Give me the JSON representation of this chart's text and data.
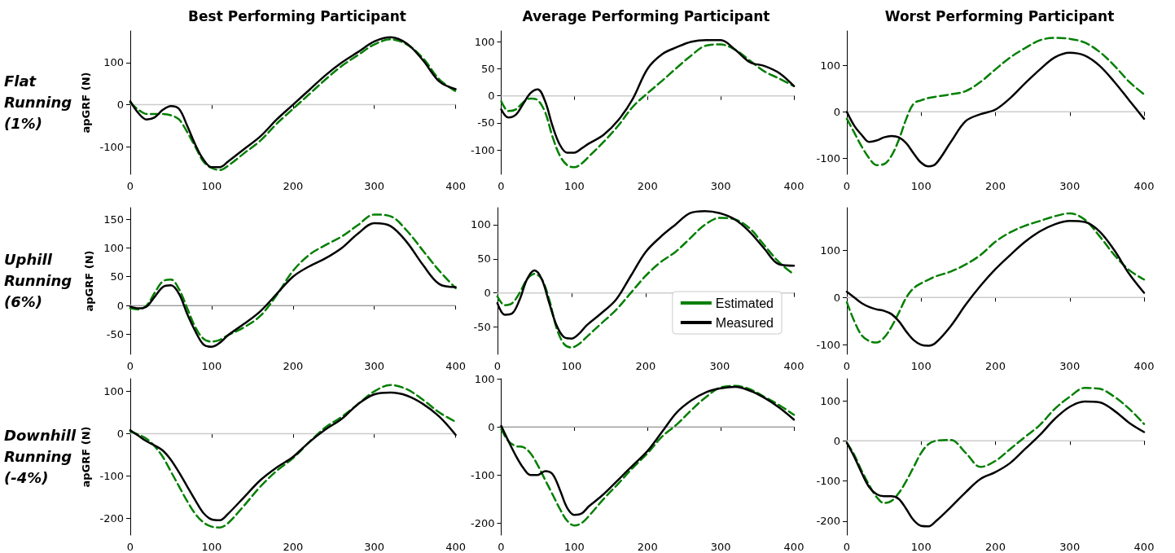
{
  "chart_data": [
    {
      "type": "line",
      "title": "Best Performing Participant",
      "ylabel": "apGRF (N)",
      "annotations": [
        "Flat Running (1%)"
      ],
      "x": [
        0,
        10,
        20,
        30,
        40,
        50,
        60,
        70,
        80,
        90,
        100,
        110,
        120,
        140,
        160,
        180,
        200,
        220,
        240,
        260,
        280,
        300,
        320,
        340,
        360,
        380,
        400
      ],
      "xlim": [
        0,
        400
      ],
      "xticks": [
        0,
        100,
        200,
        300,
        400
      ],
      "ylim": [
        -165,
        175
      ],
      "yticks": [
        -100,
        0,
        100
      ],
      "ref_lines": [
        {
          "axis": "y",
          "value": 0,
          "color": "#cccccc"
        }
      ],
      "series": [
        {
          "color": "#007f00",
          "line_style": "dashed",
          "values": [
            5,
            -12,
            -22,
            -22,
            -22,
            -25,
            -35,
            -65,
            -100,
            -135,
            -150,
            -155,
            -145,
            -115,
            -85,
            -45,
            -10,
            25,
            60,
            92,
            118,
            143,
            155,
            143,
            110,
            60,
            32
          ]
        },
        {
          "color": "#000000",
          "line_style": "solid",
          "values": [
            8,
            -20,
            -35,
            -30,
            -12,
            -3,
            -10,
            -50,
            -95,
            -130,
            -148,
            -148,
            -135,
            -105,
            -75,
            -35,
            0,
            35,
            70,
            100,
            125,
            150,
            160,
            145,
            105,
            55,
            37
          ]
        }
      ]
    },
    {
      "type": "line",
      "title": "Average Performing Participant",
      "x": [
        0,
        10,
        20,
        30,
        40,
        50,
        60,
        70,
        80,
        90,
        100,
        110,
        120,
        140,
        160,
        180,
        200,
        220,
        240,
        260,
        280,
        300,
        320,
        340,
        360,
        380,
        400
      ],
      "xlim": [
        0,
        400
      ],
      "xticks": [
        0,
        100,
        200,
        300,
        400
      ],
      "ylim": [
        -145,
        120
      ],
      "yticks": [
        -100,
        -50,
        0,
        50,
        100
      ],
      "ref_lines": [
        {
          "axis": "y",
          "value": 0,
          "color": "#cccccc"
        }
      ],
      "series": [
        {
          "color": "#007f00",
          "line_style": "dashed",
          "values": [
            -10,
            -28,
            -25,
            -12,
            -5,
            -8,
            -30,
            -75,
            -110,
            -128,
            -132,
            -125,
            -112,
            -85,
            -55,
            -20,
            5,
            28,
            52,
            75,
            93,
            95,
            85,
            65,
            45,
            32,
            18
          ]
        },
        {
          "color": "#000000",
          "line_style": "solid",
          "values": [
            -25,
            -40,
            -35,
            -15,
            5,
            12,
            -10,
            -55,
            -90,
            -105,
            -105,
            -97,
            -88,
            -72,
            -45,
            -5,
            50,
            77,
            90,
            100,
            103,
            103,
            85,
            62,
            55,
            42,
            18
          ]
        }
      ]
    },
    {
      "type": "line",
      "title": "Worst Performing Participant",
      "x": [
        0,
        10,
        20,
        30,
        40,
        50,
        60,
        70,
        80,
        90,
        100,
        110,
        120,
        140,
        160,
        180,
        200,
        220,
        240,
        260,
        280,
        300,
        320,
        340,
        360,
        380,
        400
      ],
      "xlim": [
        0,
        400
      ],
      "xticks": [
        0,
        100,
        200,
        300,
        400
      ],
      "ylim": [
        -135,
        175
      ],
      "yticks": [
        -100,
        0,
        100
      ],
      "ref_lines": [
        {
          "axis": "y",
          "value": 0,
          "color": "#cccccc"
        }
      ],
      "series": [
        {
          "color": "#007f00",
          "line_style": "dashed",
          "values": [
            -15,
            -45,
            -75,
            -100,
            -115,
            -113,
            -95,
            -60,
            -15,
            18,
            25,
            30,
            33,
            38,
            45,
            65,
            92,
            118,
            138,
            155,
            160,
            158,
            150,
            130,
            100,
            65,
            38
          ]
        },
        {
          "color": "#000000",
          "line_style": "solid",
          "values": [
            0,
            -30,
            -50,
            -65,
            -62,
            -55,
            -52,
            -55,
            -68,
            -90,
            -110,
            -118,
            -112,
            -65,
            -20,
            -5,
            5,
            30,
            62,
            92,
            118,
            128,
            122,
            100,
            65,
            25,
            -15
          ]
        }
      ]
    },
    {
      "type": "line",
      "ylabel": "apGRF (N)",
      "annotations": [
        "Uphill Running (6%)"
      ],
      "x": [
        0,
        10,
        20,
        30,
        40,
        50,
        60,
        70,
        80,
        90,
        100,
        110,
        120,
        140,
        160,
        180,
        200,
        220,
        240,
        260,
        280,
        300,
        320,
        340,
        360,
        380,
        400
      ],
      "xlim": [
        0,
        400
      ],
      "xticks": [
        0,
        100,
        200,
        300,
        400
      ],
      "ylim": [
        -85,
        170
      ],
      "yticks": [
        -50,
        0,
        50,
        100,
        150
      ],
      "ref_lines": [
        {
          "axis": "y",
          "value": 0,
          "color": "#cccccc"
        }
      ],
      "series": [
        {
          "color": "#007f00",
          "line_style": "dashed",
          "values": [
            -5,
            -7,
            0,
            22,
            42,
            45,
            28,
            -5,
            -38,
            -58,
            -63,
            -60,
            -52,
            -38,
            -18,
            18,
            60,
            88,
            105,
            120,
            140,
            158,
            155,
            130,
            95,
            60,
            30
          ]
        },
        {
          "color": "#000000",
          "line_style": "solid",
          "values": [
            -2,
            -5,
            -2,
            15,
            32,
            35,
            20,
            -15,
            -45,
            -68,
            -72,
            -65,
            -52,
            -32,
            -10,
            20,
            50,
            68,
            82,
            100,
            125,
            143,
            138,
            110,
            70,
            37,
            32
          ]
        }
      ]
    },
    {
      "type": "line",
      "legend": "bottom right",
      "x": [
        0,
        10,
        20,
        30,
        40,
        50,
        60,
        70,
        80,
        90,
        100,
        110,
        120,
        140,
        160,
        180,
        200,
        220,
        240,
        260,
        280,
        300,
        320,
        340,
        360,
        380,
        400
      ],
      "xlim": [
        0,
        400
      ],
      "xticks": [
        0,
        100,
        200,
        300,
        400
      ],
      "ylim": [
        -90,
        125
      ],
      "yticks": [
        -50,
        0,
        50,
        100
      ],
      "ref_lines": [
        {
          "axis": "y",
          "value": 0,
          "color": "#cccccc"
        }
      ],
      "series": [
        {
          "name": "Estimated",
          "color": "#007f00",
          "line_style": "dashed",
          "values": [
            -5,
            -18,
            -15,
            0,
            20,
            28,
            20,
            -10,
            -52,
            -75,
            -80,
            -75,
            -65,
            -45,
            -25,
            0,
            25,
            45,
            60,
            80,
            100,
            110,
            108,
            95,
            70,
            45,
            27
          ]
        },
        {
          "name": "Measured",
          "color": "#000000",
          "line_style": "solid",
          "values": [
            -15,
            -32,
            -30,
            -10,
            20,
            33,
            20,
            -15,
            -48,
            -65,
            -67,
            -60,
            -48,
            -30,
            -10,
            25,
            60,
            82,
            100,
            117,
            120,
            117,
            108,
            90,
            65,
            42,
            40
          ]
        }
      ]
    },
    {
      "type": "line",
      "x": [
        0,
        10,
        20,
        30,
        40,
        50,
        60,
        70,
        80,
        90,
        100,
        110,
        120,
        140,
        160,
        180,
        200,
        220,
        240,
        260,
        280,
        300,
        320,
        340,
        360,
        380,
        400
      ],
      "xlim": [
        0,
        400
      ],
      "xticks": [
        0,
        100,
        200,
        300,
        400
      ],
      "ylim": [
        -120,
        190
      ],
      "yticks": [
        -100,
        0,
        100
      ],
      "ref_lines": [
        {
          "axis": "y",
          "value": 0,
          "color": "#cccccc"
        }
      ],
      "series": [
        {
          "color": "#007f00",
          "line_style": "dashed",
          "values": [
            -10,
            -50,
            -80,
            -92,
            -95,
            -85,
            -62,
            -32,
            0,
            20,
            30,
            38,
            45,
            55,
            70,
            90,
            118,
            138,
            152,
            162,
            172,
            178,
            165,
            130,
            90,
            58,
            38
          ]
        },
        {
          "color": "#000000",
          "line_style": "solid",
          "values": [
            12,
            0,
            -12,
            -20,
            -25,
            -28,
            -35,
            -50,
            -72,
            -90,
            -100,
            -102,
            -95,
            -60,
            -15,
            25,
            60,
            90,
            118,
            140,
            155,
            162,
            160,
            140,
            100,
            50,
            10
          ]
        }
      ]
    },
    {
      "type": "line",
      "ylabel": "apGRF (N)",
      "annotations": [
        "Downhill Running (-4%)"
      ],
      "x": [
        0,
        10,
        20,
        30,
        40,
        50,
        60,
        70,
        80,
        90,
        100,
        110,
        120,
        140,
        160,
        180,
        200,
        220,
        240,
        260,
        280,
        300,
        320,
        340,
        360,
        380,
        400
      ],
      "xlim": [
        0,
        400
      ],
      "xticks": [
        0,
        100,
        200,
        300,
        400
      ],
      "ylim": [
        -240,
        130
      ],
      "yticks": [
        -200,
        -100,
        0,
        100
      ],
      "ref_lines": [
        {
          "axis": "y",
          "value": 0,
          "color": "#cccccc"
        }
      ],
      "series": [
        {
          "color": "#007f00",
          "line_style": "dashed",
          "values": [
            5,
            -2,
            -12,
            -30,
            -55,
            -90,
            -125,
            -160,
            -190,
            -210,
            -220,
            -222,
            -212,
            -170,
            -125,
            -88,
            -58,
            -20,
            15,
            40,
            70,
            100,
            115,
            105,
            80,
            50,
            28
          ]
        },
        {
          "color": "#000000",
          "line_style": "solid",
          "values": [
            8,
            -5,
            -18,
            -28,
            -40,
            -62,
            -92,
            -125,
            -158,
            -188,
            -203,
            -205,
            -190,
            -150,
            -110,
            -80,
            -55,
            -20,
            10,
            35,
            70,
            93,
            97,
            90,
            70,
            40,
            -3
          ]
        }
      ]
    },
    {
      "type": "line",
      "x": [
        0,
        10,
        20,
        30,
        40,
        50,
        60,
        70,
        80,
        90,
        100,
        110,
        120,
        140,
        160,
        180,
        200,
        220,
        240,
        260,
        280,
        300,
        320,
        340,
        360,
        380,
        400
      ],
      "xlim": [
        0,
        400
      ],
      "xticks": [
        0,
        100,
        200,
        300,
        400
      ],
      "ylim": [
        -225,
        100
      ],
      "yticks": [
        -200,
        -100,
        0,
        100
      ],
      "ref_lines": [
        {
          "axis": "y",
          "value": 0,
          "color": "#cccccc"
        }
      ],
      "series": [
        {
          "color": "#007f00",
          "line_style": "dashed",
          "values": [
            -5,
            -30,
            -40,
            -42,
            -55,
            -80,
            -110,
            -140,
            -170,
            -195,
            -205,
            -200,
            -185,
            -150,
            -118,
            -85,
            -55,
            -20,
            5,
            35,
            62,
            82,
            85,
            78,
            62,
            45,
            25
          ]
        },
        {
          "color": "#000000",
          "line_style": "solid",
          "values": [
            2,
            -30,
            -60,
            -85,
            -100,
            -100,
            -92,
            -98,
            -130,
            -168,
            -183,
            -180,
            -165,
            -140,
            -110,
            -80,
            -50,
            -10,
            30,
            55,
            72,
            80,
            83,
            75,
            60,
            40,
            15
          ]
        }
      ]
    },
    {
      "type": "line",
      "x": [
        0,
        10,
        20,
        30,
        40,
        50,
        60,
        70,
        80,
        90,
        100,
        110,
        120,
        140,
        160,
        180,
        200,
        220,
        240,
        260,
        280,
        300,
        320,
        340,
        360,
        380,
        400
      ],
      "xlim": [
        0,
        400
      ],
      "xticks": [
        0,
        100,
        200,
        300,
        400
      ],
      "ylim": [
        -235,
        155
      ],
      "yticks": [
        -200,
        -100,
        0,
        100
      ],
      "ref_lines": [
        {
          "axis": "y",
          "value": 0,
          "color": "#cccccc"
        }
      ],
      "series": [
        {
          "color": "#007f00",
          "line_style": "dashed",
          "values": [
            -5,
            -35,
            -75,
            -110,
            -140,
            -155,
            -150,
            -130,
            -100,
            -65,
            -30,
            -8,
            0,
            2,
            -30,
            -65,
            -50,
            -20,
            10,
            40,
            80,
            110,
            132,
            130,
            110,
            80,
            42
          ]
        },
        {
          "color": "#000000",
          "line_style": "solid",
          "values": [
            -5,
            -40,
            -80,
            -115,
            -133,
            -138,
            -138,
            -145,
            -170,
            -198,
            -212,
            -213,
            -200,
            -165,
            -128,
            -95,
            -78,
            -55,
            -20,
            15,
            55,
            85,
            98,
            96,
            75,
            45,
            22
          ]
        }
      ]
    }
  ]
}
